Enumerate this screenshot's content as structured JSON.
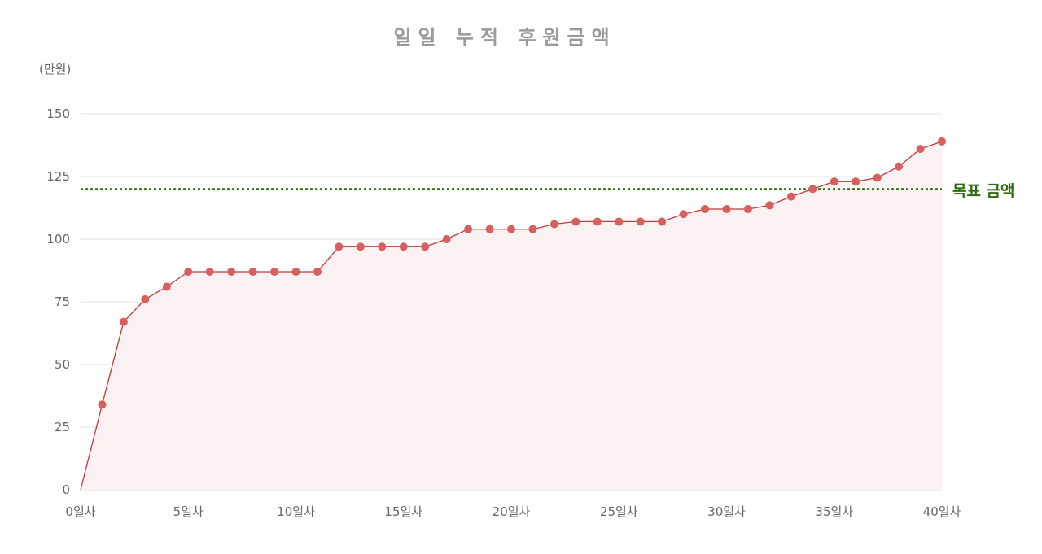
{
  "chart_data": {
    "type": "line",
    "title": "일일 누적 후원금액",
    "ylabel": "(만원)",
    "xlabel": "",
    "ylim": [
      0,
      150
    ],
    "xlim": [
      0,
      40
    ],
    "yticks": [
      0,
      25,
      50,
      75,
      100,
      125,
      150
    ],
    "xticks": [
      0,
      5,
      10,
      15,
      20,
      25,
      30,
      35,
      40
    ],
    "xtick_labels": [
      "0일차",
      "5일차",
      "10일차",
      "15일차",
      "20일차",
      "25일차",
      "30일차",
      "35일차",
      "40일차"
    ],
    "grid": true,
    "series": [
      {
        "name": "누적 후원금액",
        "color": "#d95f5f",
        "line_color": "#c0393b",
        "fill": "#f9f1f2",
        "x": [
          0,
          1,
          2,
          3,
          4,
          5,
          6,
          7,
          8,
          9,
          10,
          11,
          12,
          13,
          14,
          15,
          16,
          17,
          18,
          19,
          20,
          21,
          22,
          23,
          24,
          25,
          26,
          27,
          28,
          29,
          30,
          31,
          32,
          33,
          34,
          35,
          36,
          37,
          38,
          39,
          40
        ],
        "values": [
          0,
          34,
          67,
          76,
          81,
          87,
          87,
          87,
          87,
          87,
          87,
          87,
          97,
          97,
          97,
          97,
          97,
          100,
          104,
          104,
          104,
          104,
          106,
          107,
          107,
          107,
          107,
          107,
          110,
          112,
          112,
          112,
          113.5,
          117,
          120,
          123,
          123,
          124.5,
          129,
          136,
          139
        ]
      }
    ],
    "annotations": [
      {
        "type": "hline",
        "y": 120,
        "label": "목표 금액",
        "color": "#2e6b10",
        "style": "dotted"
      }
    ]
  }
}
